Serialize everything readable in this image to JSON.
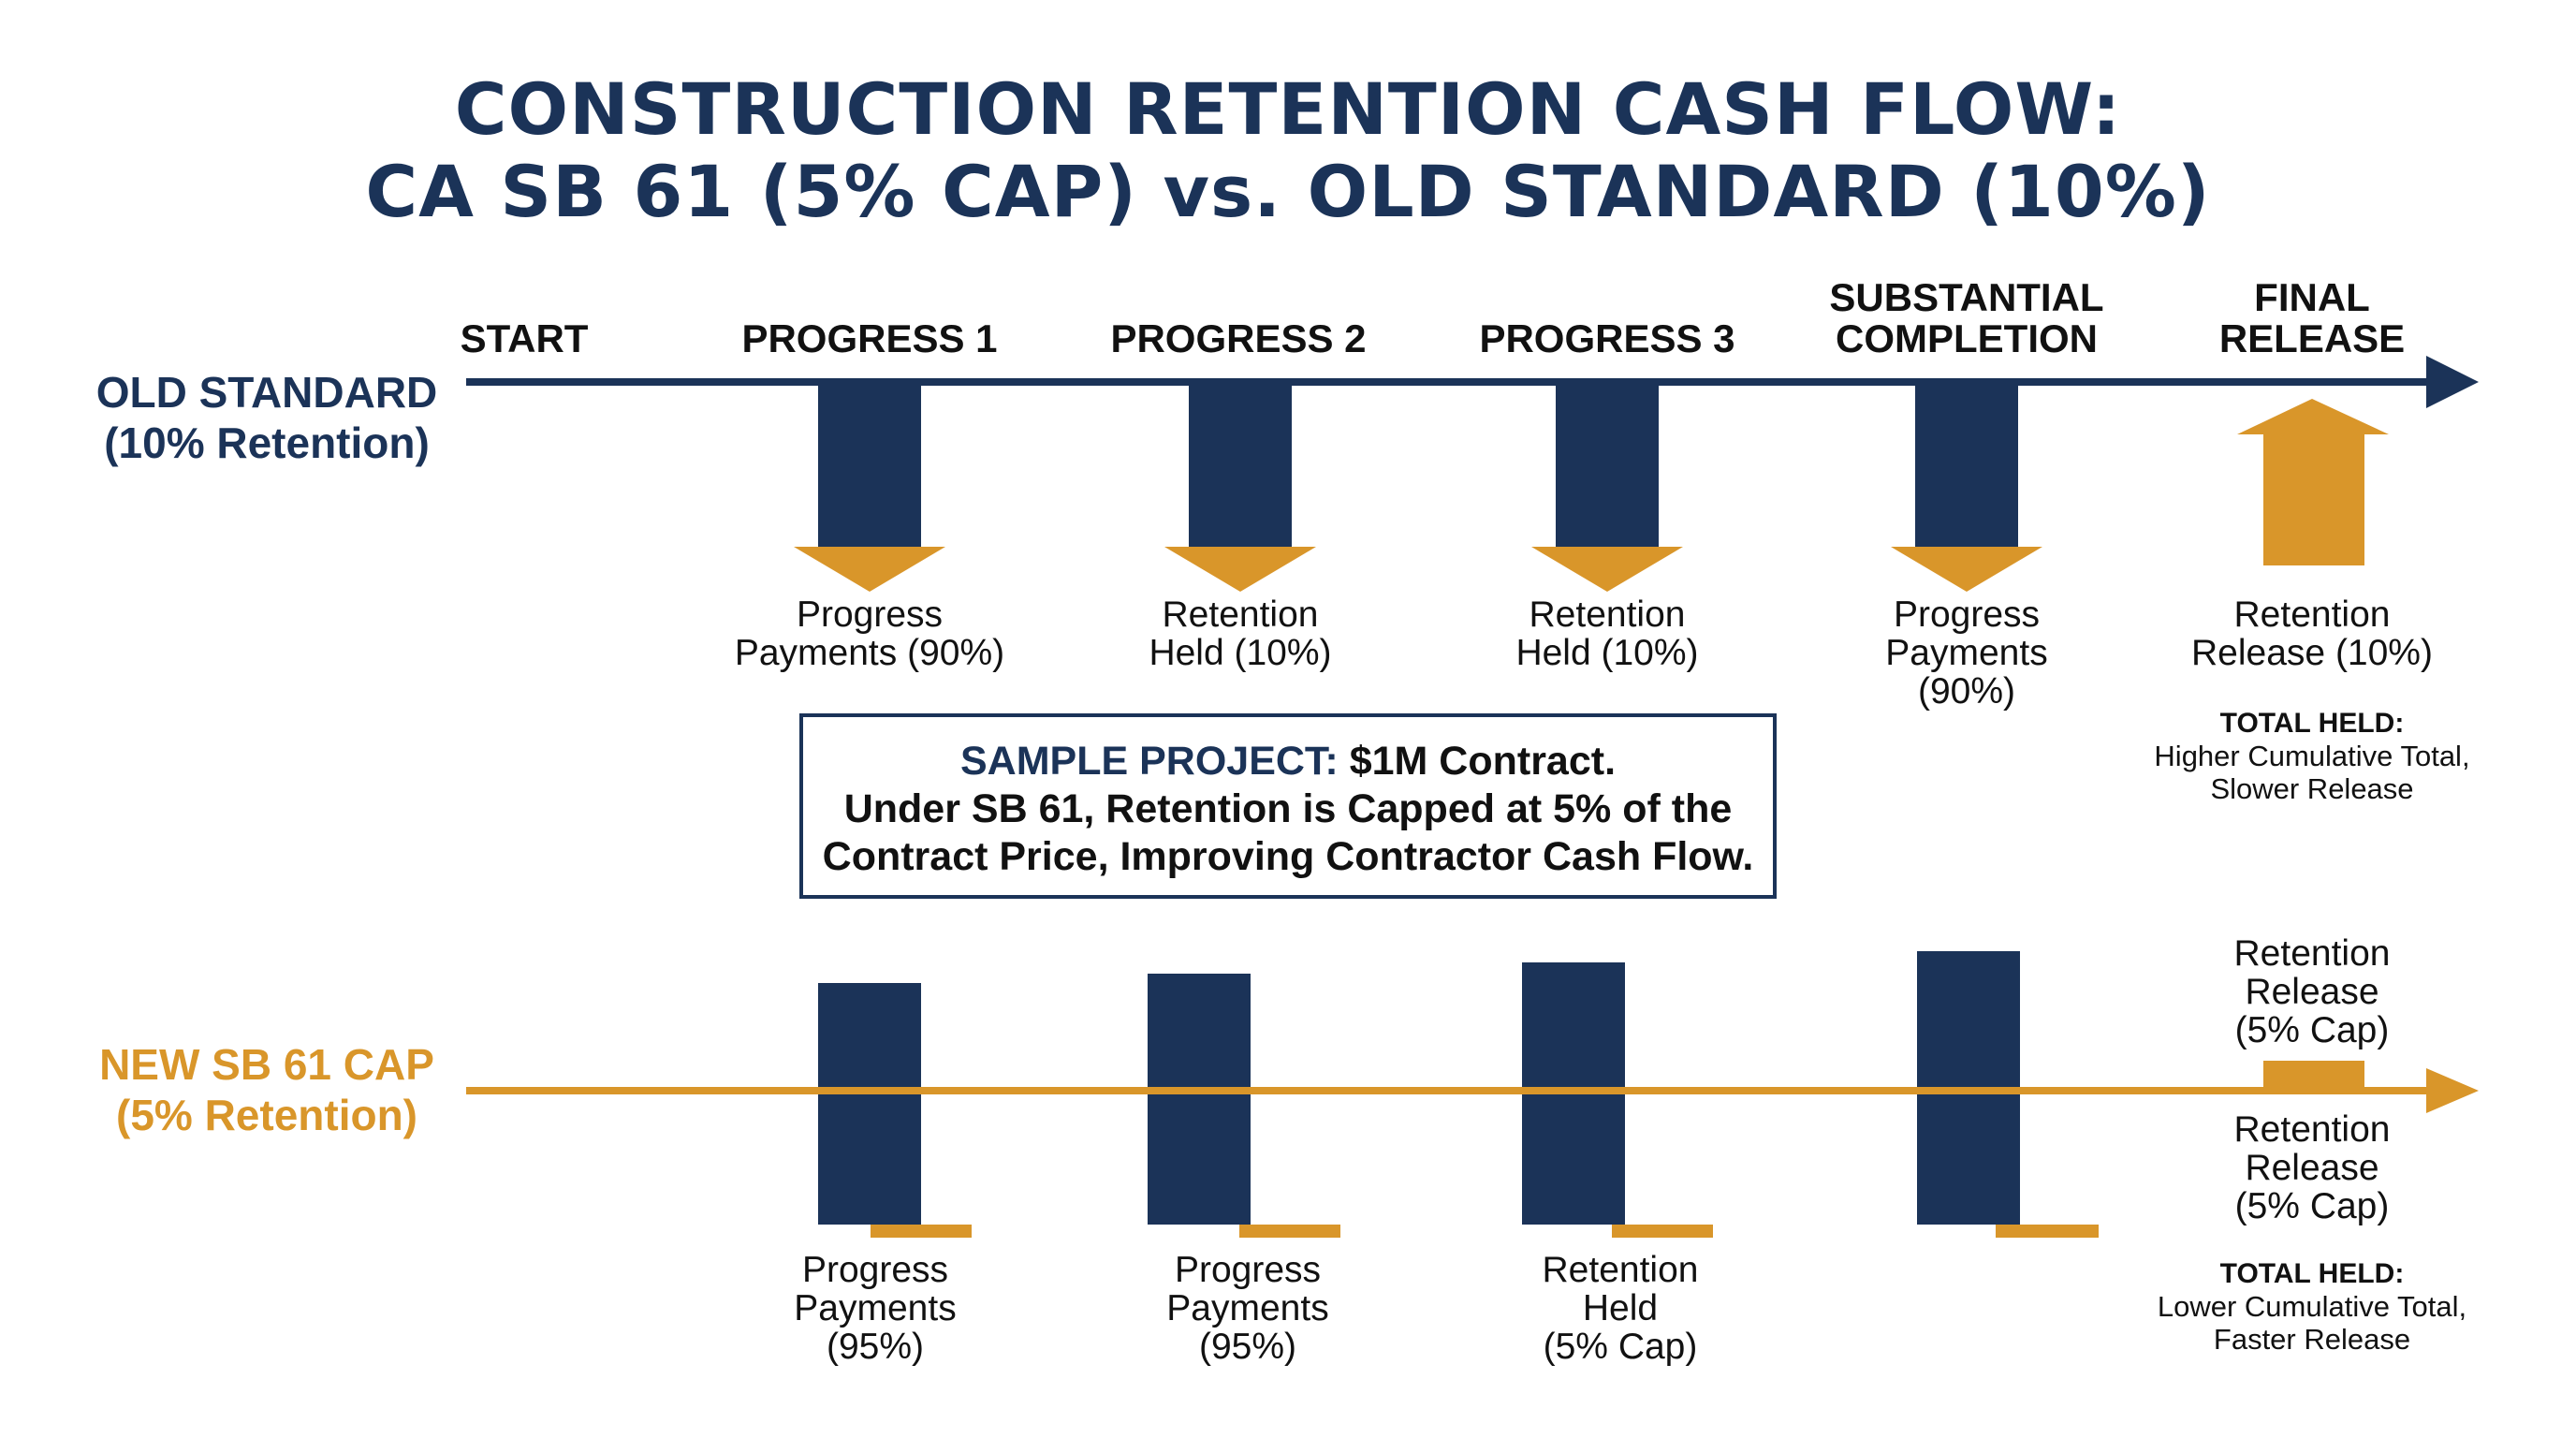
{
  "title": {
    "line1": "CONSTRUCTION RETENTION CASH FLOW:",
    "line2": "CA SB 61 (5% CAP) vs. OLD STANDARD (10%)"
  },
  "colors": {
    "navy": "#1b3358",
    "gold": "#d9962a"
  },
  "stages": [
    {
      "line1": "",
      "line2": "START"
    },
    {
      "line1": "",
      "line2": "PROGRESS 1"
    },
    {
      "line1": "",
      "line2": "PROGRESS 2"
    },
    {
      "line1": "",
      "line2": "PROGRESS 3"
    },
    {
      "line1": "SUBSTANTIAL",
      "line2": "COMPLETION"
    },
    {
      "line1": "FINAL",
      "line2": "RELEASE"
    }
  ],
  "old_row": {
    "label": "OLD STANDARD",
    "sublabel": "(10% Retention)",
    "captions": [
      {
        "l1": "Progress",
        "l2": "Payments (90%)",
        "l3": ""
      },
      {
        "l1": "Retention",
        "l2": "Held (10%)",
        "l3": ""
      },
      {
        "l1": "Retention",
        "l2": "Held (10%)",
        "l3": ""
      },
      {
        "l1": "Progress",
        "l2": "Payments",
        "l3": "(90%)"
      },
      {
        "l1": "Retention",
        "l2": "Release (10%)",
        "l3": ""
      }
    ],
    "total": {
      "heading": "TOTAL HELD:",
      "l1": "Higher Cumulative Total,",
      "l2": "Slower Release"
    }
  },
  "note": {
    "highlight": "SAMPLE PROJECT:",
    "amount": " $1M Contract.",
    "line2": "Under SB 61, Retention is Capped at 5% of the",
    "line3": "Contract Price, Improving Contractor Cash Flow."
  },
  "new_row": {
    "label": "NEW SB 61 CAP",
    "sublabel": "(5% Retention)",
    "captions": [
      {
        "l1": "Progress",
        "l2": "Payments",
        "l3": "(95%)"
      },
      {
        "l1": "Progress",
        "l2": "Payments",
        "l3": "(95%)"
      },
      {
        "l1": "Retention",
        "l2": "Held",
        "l3": "(5% Cap)"
      }
    ],
    "release_above": {
      "l1": "Retention",
      "l2": "Release",
      "l3": "(5% Cap)"
    },
    "release_below": {
      "l1": "Retention",
      "l2": "Release",
      "l3": "(5% Cap)"
    },
    "total": {
      "heading": "TOTAL HELD:",
      "l1": "Lower Cumulative Total,",
      "l2": "Faster Release"
    }
  }
}
